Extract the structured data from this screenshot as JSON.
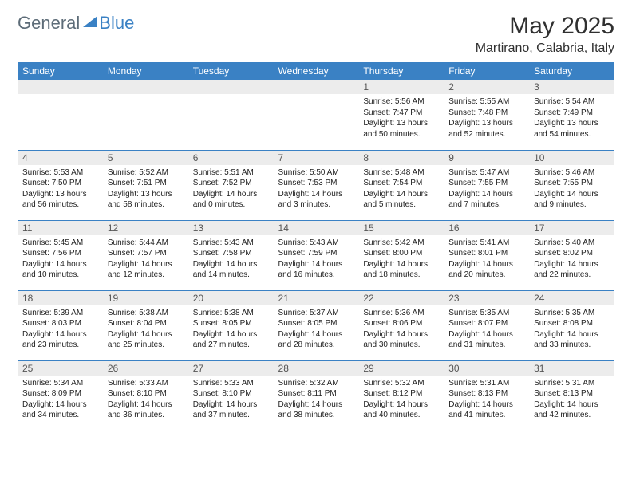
{
  "brand": {
    "part1": "General",
    "part2": "Blue"
  },
  "title": "May 2025",
  "location": "Martirano, Calabria, Italy",
  "colors": {
    "header_bg": "#3a81c4",
    "header_text": "#ffffff",
    "daynum_bg": "#ececec",
    "border": "#3a81c4",
    "logo_gray": "#5d6c78",
    "text": "#222222",
    "bg": "#ffffff"
  },
  "day_names": [
    "Sunday",
    "Monday",
    "Tuesday",
    "Wednesday",
    "Thursday",
    "Friday",
    "Saturday"
  ],
  "weeks": [
    [
      null,
      null,
      null,
      null,
      {
        "n": "1",
        "sr": "5:56 AM",
        "ss": "7:47 PM",
        "dl": "13 hours and 50 minutes."
      },
      {
        "n": "2",
        "sr": "5:55 AM",
        "ss": "7:48 PM",
        "dl": "13 hours and 52 minutes."
      },
      {
        "n": "3",
        "sr": "5:54 AM",
        "ss": "7:49 PM",
        "dl": "13 hours and 54 minutes."
      }
    ],
    [
      {
        "n": "4",
        "sr": "5:53 AM",
        "ss": "7:50 PM",
        "dl": "13 hours and 56 minutes."
      },
      {
        "n": "5",
        "sr": "5:52 AM",
        "ss": "7:51 PM",
        "dl": "13 hours and 58 minutes."
      },
      {
        "n": "6",
        "sr": "5:51 AM",
        "ss": "7:52 PM",
        "dl": "14 hours and 0 minutes."
      },
      {
        "n": "7",
        "sr": "5:50 AM",
        "ss": "7:53 PM",
        "dl": "14 hours and 3 minutes."
      },
      {
        "n": "8",
        "sr": "5:48 AM",
        "ss": "7:54 PM",
        "dl": "14 hours and 5 minutes."
      },
      {
        "n": "9",
        "sr": "5:47 AM",
        "ss": "7:55 PM",
        "dl": "14 hours and 7 minutes."
      },
      {
        "n": "10",
        "sr": "5:46 AM",
        "ss": "7:55 PM",
        "dl": "14 hours and 9 minutes."
      }
    ],
    [
      {
        "n": "11",
        "sr": "5:45 AM",
        "ss": "7:56 PM",
        "dl": "14 hours and 10 minutes."
      },
      {
        "n": "12",
        "sr": "5:44 AM",
        "ss": "7:57 PM",
        "dl": "14 hours and 12 minutes."
      },
      {
        "n": "13",
        "sr": "5:43 AM",
        "ss": "7:58 PM",
        "dl": "14 hours and 14 minutes."
      },
      {
        "n": "14",
        "sr": "5:43 AM",
        "ss": "7:59 PM",
        "dl": "14 hours and 16 minutes."
      },
      {
        "n": "15",
        "sr": "5:42 AM",
        "ss": "8:00 PM",
        "dl": "14 hours and 18 minutes."
      },
      {
        "n": "16",
        "sr": "5:41 AM",
        "ss": "8:01 PM",
        "dl": "14 hours and 20 minutes."
      },
      {
        "n": "17",
        "sr": "5:40 AM",
        "ss": "8:02 PM",
        "dl": "14 hours and 22 minutes."
      }
    ],
    [
      {
        "n": "18",
        "sr": "5:39 AM",
        "ss": "8:03 PM",
        "dl": "14 hours and 23 minutes."
      },
      {
        "n": "19",
        "sr": "5:38 AM",
        "ss": "8:04 PM",
        "dl": "14 hours and 25 minutes."
      },
      {
        "n": "20",
        "sr": "5:38 AM",
        "ss": "8:05 PM",
        "dl": "14 hours and 27 minutes."
      },
      {
        "n": "21",
        "sr": "5:37 AM",
        "ss": "8:05 PM",
        "dl": "14 hours and 28 minutes."
      },
      {
        "n": "22",
        "sr": "5:36 AM",
        "ss": "8:06 PM",
        "dl": "14 hours and 30 minutes."
      },
      {
        "n": "23",
        "sr": "5:35 AM",
        "ss": "8:07 PM",
        "dl": "14 hours and 31 minutes."
      },
      {
        "n": "24",
        "sr": "5:35 AM",
        "ss": "8:08 PM",
        "dl": "14 hours and 33 minutes."
      }
    ],
    [
      {
        "n": "25",
        "sr": "5:34 AM",
        "ss": "8:09 PM",
        "dl": "14 hours and 34 minutes."
      },
      {
        "n": "26",
        "sr": "5:33 AM",
        "ss": "8:10 PM",
        "dl": "14 hours and 36 minutes."
      },
      {
        "n": "27",
        "sr": "5:33 AM",
        "ss": "8:10 PM",
        "dl": "14 hours and 37 minutes."
      },
      {
        "n": "28",
        "sr": "5:32 AM",
        "ss": "8:11 PM",
        "dl": "14 hours and 38 minutes."
      },
      {
        "n": "29",
        "sr": "5:32 AM",
        "ss": "8:12 PM",
        "dl": "14 hours and 40 minutes."
      },
      {
        "n": "30",
        "sr": "5:31 AM",
        "ss": "8:13 PM",
        "dl": "14 hours and 41 minutes."
      },
      {
        "n": "31",
        "sr": "5:31 AM",
        "ss": "8:13 PM",
        "dl": "14 hours and 42 minutes."
      }
    ]
  ],
  "labels": {
    "sunrise": "Sunrise:",
    "sunset": "Sunset:",
    "daylight": "Daylight:"
  }
}
